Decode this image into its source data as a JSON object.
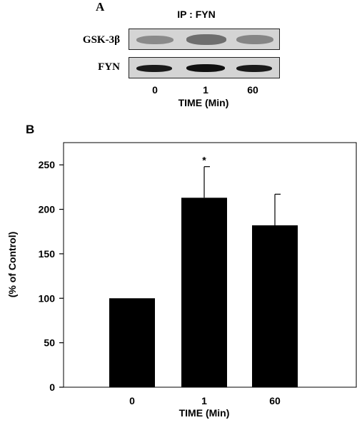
{
  "panel_a": {
    "letter": "A",
    "ip_label": "IP : FYN",
    "blots": [
      {
        "label": "GSK-3β"
      },
      {
        "label": "FYN"
      }
    ],
    "lane_labels": [
      "0",
      "1",
      "60"
    ],
    "xlabel": "TIME (Min)"
  },
  "panel_b": {
    "letter": "B"
  },
  "chart_data": {
    "type": "bar",
    "categories": [
      "0",
      "1",
      "60"
    ],
    "values": [
      100,
      213,
      182
    ],
    "errors": [
      0,
      35,
      35
    ],
    "significance": [
      "",
      "*",
      ""
    ],
    "ylim": [
      0,
      275
    ],
    "yticks": [
      0,
      50,
      100,
      150,
      200,
      250
    ],
    "xlabel": "TIME (Min)",
    "ylabel": "(% of Control)",
    "bar_color": "#000000"
  }
}
